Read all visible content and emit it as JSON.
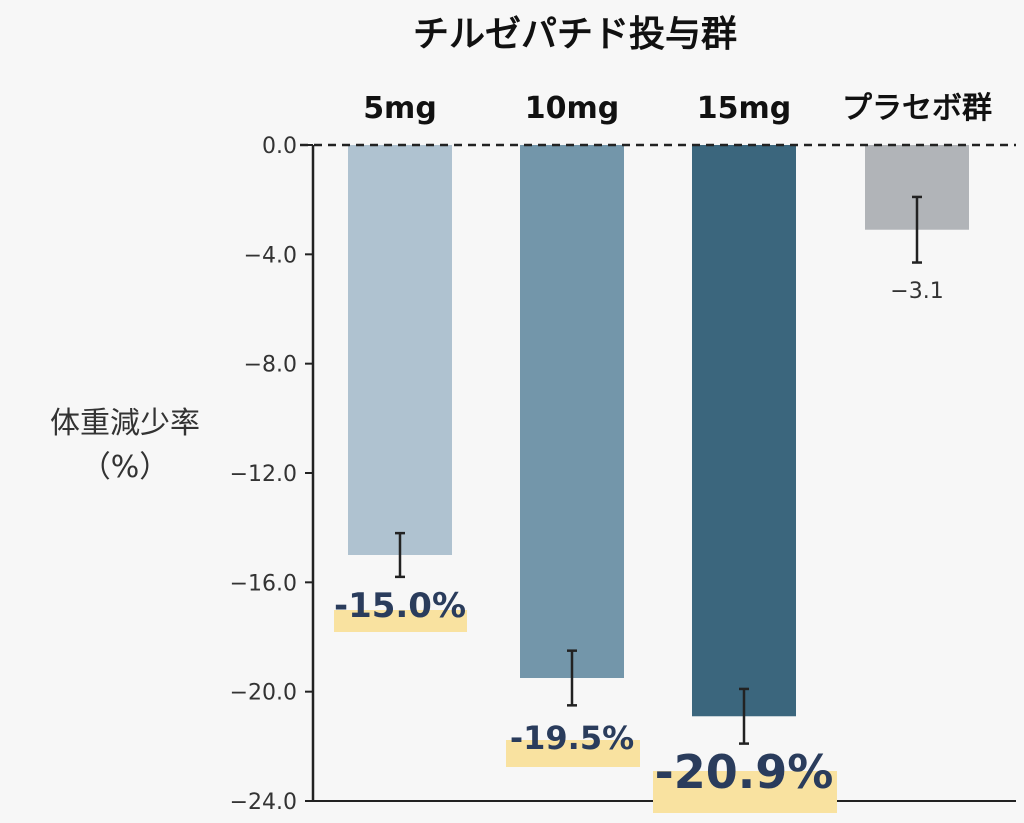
{
  "chart_data": {
    "type": "bar",
    "title": "チルゼパチド投与群",
    "ylabel": [
      "体重減少率",
      "（%）"
    ],
    "categories": [
      "5mg",
      "10mg",
      "15mg",
      "プラセボ群"
    ],
    "values": [
      -15.0,
      -19.5,
      -20.9,
      -3.1
    ],
    "error_bars": [
      {
        "low": -15.8,
        "high": -14.2
      },
      {
        "low": -20.5,
        "high": -18.5
      },
      {
        "low": -21.9,
        "high": -19.9
      },
      {
        "low": -4.3,
        "high": -1.9
      }
    ],
    "data_labels": [
      "-15.0%",
      "-19.5%",
      "-20.9%",
      "−3.1"
    ],
    "ylim": [
      -24.0,
      0.0
    ],
    "yticks": [
      0,
      -4,
      -8,
      -12,
      -16,
      -20,
      -24
    ],
    "ytick_labels": [
      "0.0",
      "−4.0",
      "−8.0",
      "−12.0",
      "−16.0",
      "−20.0",
      "−24.0"
    ],
    "grid": false,
    "zero_line": "dashed"
  },
  "colors": {
    "bars": [
      "#afc2d0",
      "#7396aa",
      "#3b667d",
      "#b1b4b8"
    ],
    "highlight": "#f9e2a0",
    "label_text": "#2a3c5c",
    "axis": "#222222"
  }
}
